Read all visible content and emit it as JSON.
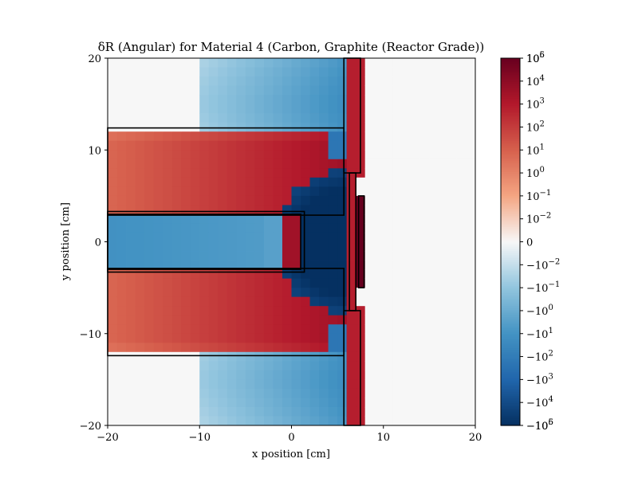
{
  "chart_data": {
    "type": "heatmap",
    "title": "δR (Angular) for Material 4 (Carbon, Graphite (Reactor Grade))",
    "xlabel": "x position [cm]",
    "ylabel": "y position [cm]",
    "xlim": [
      -20,
      20
    ],
    "ylim": [
      -20,
      20
    ],
    "x_ticks": [
      -20,
      -10,
      0,
      10,
      20
    ],
    "y_ticks": [
      -20,
      -10,
      0,
      10,
      20
    ],
    "x_tick_labels": [
      "−20",
      "−10",
      "0",
      "10",
      "20"
    ],
    "y_tick_labels": [
      "−20",
      "−10",
      "0",
      "10",
      "20"
    ],
    "grid": false,
    "colormap": "RdBu_r",
    "color_scale": "symlog",
    "color_range": [
      -1000000,
      1000000
    ],
    "colorbar_ticks": [
      {
        "value": 1000000,
        "base": "10",
        "exp": "6",
        "neg": false
      },
      {
        "value": 100000,
        "base": "10",
        "exp": "5",
        "neg": false
      },
      {
        "value": 10000,
        "base": "10",
        "exp": "4",
        "neg": false
      },
      {
        "value": 1000,
        "base": "10",
        "exp": "3",
        "neg": false
      },
      {
        "value": 100,
        "base": "10",
        "exp": "2",
        "neg": false
      },
      {
        "value": 10,
        "base": "10",
        "exp": "1",
        "neg": false
      },
      {
        "value": 1,
        "base": "10",
        "exp": "0",
        "neg": false
      },
      {
        "value": 0.1,
        "base": "10",
        "exp": "−1",
        "neg": false
      },
      {
        "value": 0.01,
        "base": "10",
        "exp": "−2",
        "neg": false
      },
      {
        "value": 0,
        "base": "0",
        "exp": "",
        "neg": false
      },
      {
        "value": -0.01,
        "base": "10",
        "exp": "−2",
        "neg": true
      },
      {
        "value": -0.1,
        "base": "10",
        "exp": "−1",
        "neg": true
      },
      {
        "value": -1,
        "base": "10",
        "exp": "0",
        "neg": true
      },
      {
        "value": -10,
        "base": "10",
        "exp": "1",
        "neg": true
      },
      {
        "value": -100,
        "base": "10",
        "exp": "2",
        "neg": true
      },
      {
        "value": -1000,
        "base": "10",
        "exp": "3",
        "neg": true
      },
      {
        "value": -10000,
        "base": "10",
        "exp": "4",
        "neg": true
      },
      {
        "value": -100000,
        "base": "10",
        "exp": "5",
        "neg": true
      },
      {
        "value": -1000000,
        "base": "10",
        "exp": "6",
        "neg": true
      }
    ],
    "grid_cells": [
      40,
      40
    ],
    "regions": [
      {
        "name": "upper-slab",
        "x": [
          -20,
          5.7
        ],
        "y": [
          2.9,
          12.4
        ],
        "value": 1000
      },
      {
        "name": "lower-slab",
        "x": [
          -20,
          5.7
        ],
        "y": [
          -12.4,
          -2.9
        ],
        "value": 1000
      },
      {
        "name": "central-rod",
        "x": [
          -20,
          1.4
        ],
        "y": [
          -3.3,
          3.3
        ],
        "value": -10
      },
      {
        "name": "wall-upper",
        "x": [
          5.7,
          7.5
        ],
        "y": [
          7.5,
          20
        ],
        "value": 1000
      },
      {
        "name": "wall-lower",
        "x": [
          5.7,
          7.5
        ],
        "y": [
          -20,
          -7.5
        ],
        "value": 1000
      },
      {
        "name": "wall-mid",
        "x": [
          6.3,
          7.0
        ],
        "y": [
          -7.5,
          7.5
        ],
        "value": 1000
      },
      {
        "name": "small-plate",
        "x": [
          7.3,
          7.9
        ],
        "y": [
          -5.0,
          5.0
        ],
        "value": 100000
      },
      {
        "name": "deep-blue-zone",
        "x": [
          0,
          6.3
        ],
        "y": [
          -8,
          8
        ],
        "value": -1000000
      },
      {
        "name": "light-blue-fans",
        "x": [
          -10,
          6
        ],
        "y": [
          -20,
          20
        ],
        "value": -1
      }
    ],
    "outlines": [
      {
        "x": [
          -20,
          5.7
        ],
        "y": [
          2.9,
          12.4
        ]
      },
      {
        "x": [
          -20,
          5.7
        ],
        "y": [
          -12.4,
          -2.9
        ]
      },
      {
        "x": [
          -20,
          1.4
        ],
        "y": [
          -3.3,
          3.3
        ]
      },
      {
        "x": [
          -20,
          1.0
        ],
        "y": [
          -3.0,
          3.0
        ]
      },
      {
        "x": [
          5.7,
          7.5
        ],
        "y": [
          7.5,
          20
        ]
      },
      {
        "x": [
          5.7,
          7.5
        ],
        "y": [
          -20,
          -7.5
        ]
      },
      {
        "x": [
          6.3,
          7.0
        ],
        "y": [
          -7.5,
          7.5
        ]
      },
      {
        "x": [
          7.3,
          7.9
        ],
        "y": [
          -5.0,
          5.0
        ]
      }
    ]
  }
}
